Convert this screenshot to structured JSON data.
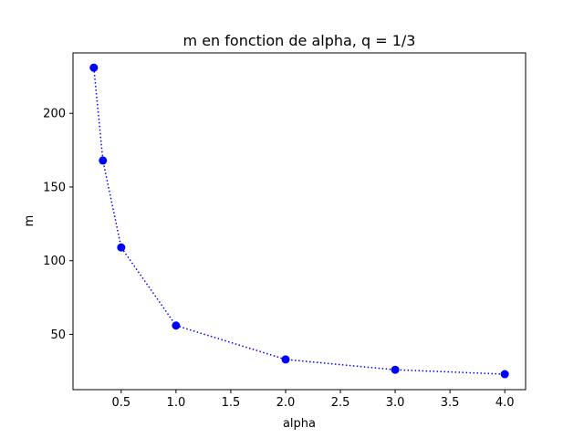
{
  "chart_data": {
    "type": "line",
    "title": "m en fonction de alpha, q = 1/3",
    "xlabel": "alpha",
    "ylabel": "m",
    "xlim": [
      0.06,
      4.19
    ],
    "ylim": [
      12.5,
      241
    ],
    "xticks": [
      0.5,
      1.0,
      1.5,
      2.0,
      2.5,
      3.0,
      3.5,
      4.0
    ],
    "xtick_labels": [
      "0.5",
      "1.0",
      "1.5",
      "2.0",
      "2.5",
      "3.0",
      "3.5",
      "4.0"
    ],
    "yticks": [
      50,
      100,
      150,
      200
    ],
    "ytick_labels": [
      "50",
      "100",
      "150",
      "200"
    ],
    "grid": false,
    "series": [
      {
        "x": [
          0.25,
          0.333,
          0.5,
          1.0,
          2.0,
          3.0,
          4.0
        ],
        "y": [
          231,
          168,
          109,
          56,
          33,
          26,
          23
        ],
        "color": "#0000ff",
        "line_style": "dotted",
        "marker": "circle"
      }
    ]
  }
}
